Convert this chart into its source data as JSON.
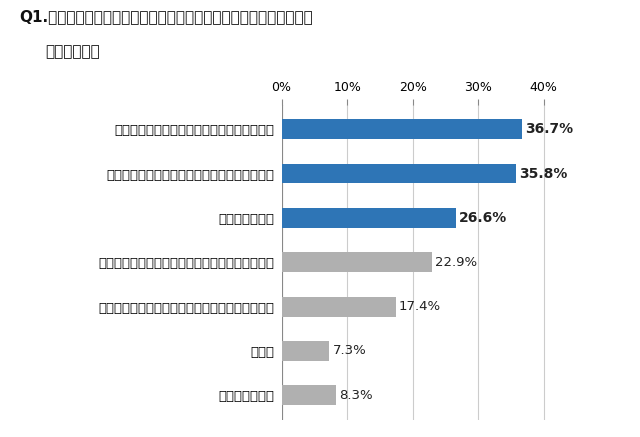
{
  "title_line1": "Q1.お勤め先での物流を委託するきっかけについて教えてください。",
  "title_line2": "（複数回答）",
  "categories": [
    "特に理由はない",
    "その他",
    "物流業務以外のタスクにリソースを割きたいため",
    "自社での物流業務品質の改善に限界を感じたため",
    "事業拡大のため",
    "自社では対応できない物流業務を委託するため",
    "オンライン売上増に伴う物流業務改善のため"
  ],
  "values": [
    8.3,
    7.3,
    17.4,
    22.9,
    26.6,
    35.8,
    36.7
  ],
  "bar_colors": [
    "#b0b0b0",
    "#b0b0b0",
    "#b0b0b0",
    "#b0b0b0",
    "#2e75b6",
    "#2e75b6",
    "#2e75b6"
  ],
  "value_labels": [
    "8.3%",
    "7.3%",
    "17.4%",
    "22.9%",
    "26.6%",
    "35.8%",
    "36.7%"
  ],
  "bold_values": [
    false,
    false,
    false,
    false,
    true,
    true,
    true
  ],
  "xlim": [
    0,
    42
  ],
  "xticks": [
    0,
    10,
    20,
    30,
    40
  ],
  "xticklabels": [
    "0%",
    "10%",
    "20%",
    "30%",
    "40%"
  ],
  "background_color": "#ffffff",
  "bar_height": 0.45,
  "title_fontsize": 11,
  "label_fontsize": 9.5,
  "value_fontsize": 9.5,
  "tick_fontsize": 9
}
